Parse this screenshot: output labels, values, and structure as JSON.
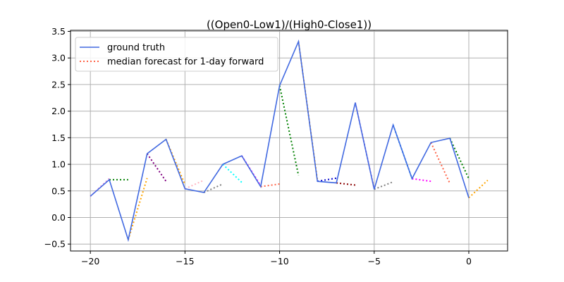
{
  "chart_data": {
    "type": "line",
    "title": "((Open0-Low1)/(High0-Close1))",
    "xlabel": "",
    "ylabel": "",
    "xlim": [
      -21.05,
      2.05
    ],
    "ylim": [
      -0.63,
      3.52
    ],
    "xticks": [
      -20,
      -15,
      -10,
      -5,
      0
    ],
    "xtick_labels": [
      "−20",
      "−15",
      "−10",
      "−5",
      "0"
    ],
    "yticks": [
      -0.5,
      0.0,
      0.5,
      1.0,
      1.5,
      2.0,
      2.5,
      3.0,
      3.5
    ],
    "ytick_labels": [
      "−0.5",
      "0.0",
      "0.5",
      "1.0",
      "1.5",
      "2.0",
      "2.5",
      "3.0",
      "3.5"
    ],
    "grid": true,
    "legend_position": "top-left",
    "legend": [
      {
        "label": "ground truth",
        "color": "#4169e1",
        "style": "solid"
      },
      {
        "label": "median forecast for 1-day forward",
        "color": "#ff6347",
        "style": "dotted"
      }
    ],
    "ground_truth": {
      "name": "ground truth",
      "color": "#4169e1",
      "x": [
        -20,
        -19,
        -18,
        -17,
        -16,
        -15,
        -14,
        -13,
        -12,
        -11,
        -10,
        -9,
        -8,
        -7,
        -6,
        -5,
        -4,
        -3,
        -2,
        -1,
        0
      ],
      "y": [
        0.4,
        0.71,
        -0.42,
        1.2,
        1.47,
        0.54,
        0.47,
        1.0,
        1.16,
        0.58,
        2.48,
        3.31,
        0.68,
        0.65,
        2.16,
        0.53,
        1.74,
        0.73,
        1.41,
        1.49,
        0.37
      ]
    },
    "forecasts": [
      {
        "color": "#da70d6",
        "x": [
          -20,
          -19
        ],
        "y": [
          0.4,
          0.73
        ]
      },
      {
        "color": "#008000",
        "x": [
          -19,
          -18
        ],
        "y": [
          0.71,
          0.71
        ]
      },
      {
        "color": "#ffa500",
        "x": [
          -18,
          -17
        ],
        "y": [
          -0.42,
          0.74
        ]
      },
      {
        "color": "#800080",
        "x": [
          -17,
          -16
        ],
        "y": [
          1.2,
          0.68
        ]
      },
      {
        "color": "#ffa500",
        "x": [
          -16,
          -15
        ],
        "y": [
          1.47,
          0.62
        ]
      },
      {
        "color": "#ffb6c1",
        "x": [
          -15,
          -14
        ],
        "y": [
          0.54,
          0.7
        ]
      },
      {
        "color": "#808080",
        "x": [
          -14,
          -13
        ],
        "y": [
          0.47,
          0.63
        ]
      },
      {
        "color": "#00ffff",
        "x": [
          -13,
          -12
        ],
        "y": [
          1.0,
          0.66
        ]
      },
      {
        "color": "#ff00ff",
        "x": [
          -12,
          -11
        ],
        "y": [
          1.16,
          0.6
        ]
      },
      {
        "color": "#ff6347",
        "x": [
          -11,
          -10
        ],
        "y": [
          0.58,
          0.63
        ]
      },
      {
        "color": "#008000",
        "x": [
          -10,
          -9
        ],
        "y": [
          2.48,
          0.79
        ]
      },
      {
        "color": "#ffa500",
        "x": [
          -9,
          -8
        ],
        "y": [
          3.31,
          0.7
        ]
      },
      {
        "color": "#0000cd",
        "x": [
          -8,
          -7
        ],
        "y": [
          0.68,
          0.74
        ]
      },
      {
        "color": "#8b0000",
        "x": [
          -7,
          -6
        ],
        "y": [
          0.65,
          0.61
        ]
      },
      {
        "color": "#da70d6",
        "x": [
          -6,
          -5
        ],
        "y": [
          2.16,
          0.54
        ]
      },
      {
        "color": "#808080",
        "x": [
          -5,
          -4
        ],
        "y": [
          0.53,
          0.67
        ]
      },
      {
        "color": "#00bfff",
        "x": [
          -4,
          -3
        ],
        "y": [
          1.74,
          0.73
        ]
      },
      {
        "color": "#ff00ff",
        "x": [
          -3,
          -2
        ],
        "y": [
          0.73,
          0.68
        ]
      },
      {
        "color": "#ff6347",
        "x": [
          -2,
          -1
        ],
        "y": [
          1.41,
          0.64
        ]
      },
      {
        "color": "#008000",
        "x": [
          -1,
          0
        ],
        "y": [
          1.49,
          0.73
        ]
      },
      {
        "color": "#ffa500",
        "x": [
          0,
          1
        ],
        "y": [
          0.37,
          0.7
        ]
      }
    ]
  }
}
